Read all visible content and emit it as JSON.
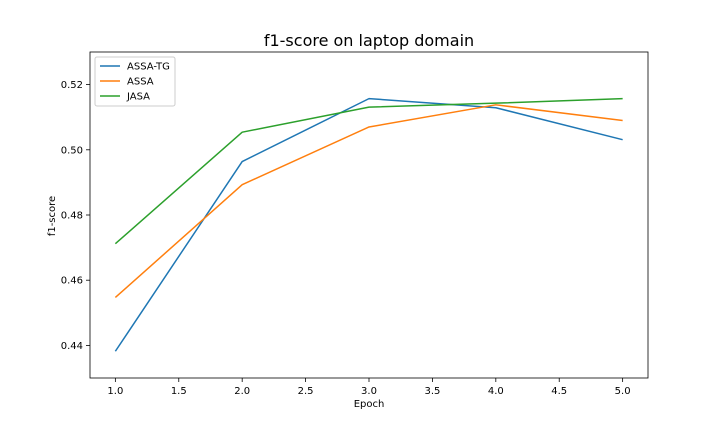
{
  "chart_data": {
    "type": "line",
    "title": "f1-score on laptop domain",
    "xlabel": "Epoch",
    "ylabel": "f1-score",
    "xlim": [
      0.8,
      5.2
    ],
    "ylim": [
      0.43,
      0.53
    ],
    "xticks": [
      "1.0",
      "1.5",
      "2.0",
      "2.5",
      "3.0",
      "3.5",
      "4.0",
      "4.5",
      "5.0"
    ],
    "yticks": [
      "0.44",
      "0.46",
      "0.48",
      "0.50",
      "0.52"
    ],
    "grid": false,
    "legend_position": "top-left",
    "x": [
      1,
      2,
      3,
      4,
      5
    ],
    "series": [
      {
        "name": "ASSA-TG",
        "color": "#1f77b4",
        "values": [
          0.4382,
          0.4964,
          0.5157,
          0.5129,
          0.5031
        ]
      },
      {
        "name": "ASSA",
        "color": "#ff7f0e",
        "values": [
          0.4547,
          0.4893,
          0.507,
          0.5138,
          0.509
        ]
      },
      {
        "name": "JASA",
        "color": "#2ca02c",
        "values": [
          0.4712,
          0.5054,
          0.5131,
          0.5143,
          0.5157
        ]
      }
    ]
  }
}
